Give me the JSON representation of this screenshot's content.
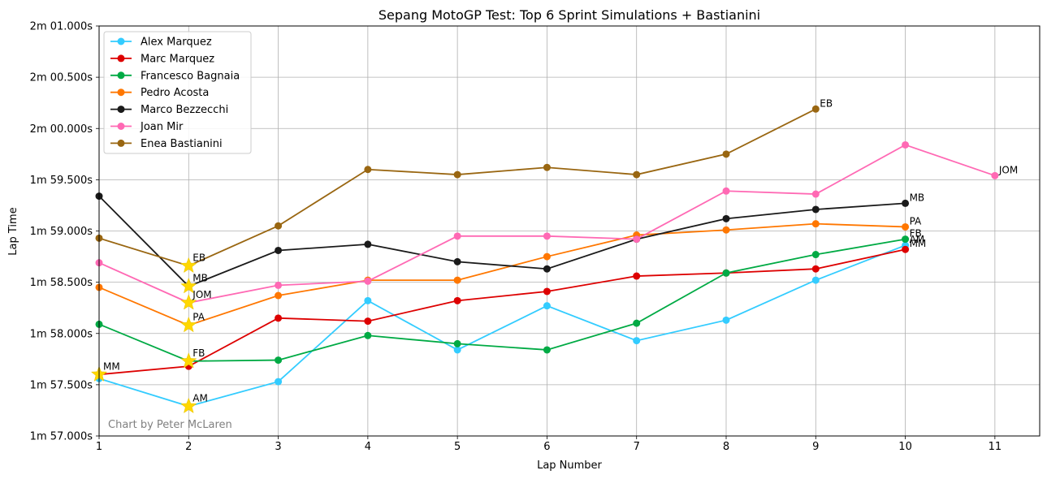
{
  "chart_data": {
    "type": "line",
    "title": "Sepang MotoGP Test: Top 6 Sprint Simulations + Bastianini",
    "xlabel": "Lap Number",
    "ylabel": "Lap Time",
    "credit": "Chart by Peter McLaren",
    "grid": true,
    "legend_position": "top-left",
    "xlim": [
      1,
      11.5
    ],
    "ylim": [
      57.0,
      61.0
    ],
    "x_ticks": [
      1,
      2,
      3,
      4,
      5,
      6,
      7,
      8,
      9,
      10,
      11
    ],
    "y_ticks": [
      {
        "value": 57.0,
        "label": "1m 57.000s"
      },
      {
        "value": 57.5,
        "label": "1m 57.500s"
      },
      {
        "value": 58.0,
        "label": "1m 58.000s"
      },
      {
        "value": 58.5,
        "label": "1m 58.500s"
      },
      {
        "value": 59.0,
        "label": "1m 59.000s"
      },
      {
        "value": 59.5,
        "label": "1m 59.500s"
      },
      {
        "value": 60.0,
        "label": "2m 00.000s"
      },
      {
        "value": 60.5,
        "label": "2m 00.500s"
      },
      {
        "value": 61.0,
        "label": "2m 01.000s"
      }
    ],
    "series": [
      {
        "name": "Alex Marquez",
        "color": "#33ccff",
        "x": [
          1,
          2,
          3,
          4,
          5,
          6,
          7,
          8,
          9,
          10
        ],
        "y": [
          57.56,
          57.29,
          57.53,
          58.32,
          57.84,
          58.27,
          57.93,
          58.13,
          58.52,
          58.86
        ],
        "best_lap": 2,
        "initials": "AM"
      },
      {
        "name": "Marc Marquez",
        "color": "#dd0000",
        "x": [
          1,
          2,
          3,
          4,
          5,
          6,
          7,
          8,
          9,
          10
        ],
        "y": [
          57.6,
          57.68,
          58.15,
          58.12,
          58.32,
          58.41,
          58.56,
          58.59,
          58.63,
          58.82
        ],
        "best_lap": 1,
        "initials": "MM"
      },
      {
        "name": "Francesco Bagnaia",
        "color": "#00aa44",
        "x": [
          1,
          2,
          3,
          4,
          5,
          6,
          7,
          8,
          9,
          10
        ],
        "y": [
          58.09,
          57.73,
          57.74,
          57.98,
          57.9,
          57.84,
          58.1,
          58.59,
          58.77,
          58.92
        ],
        "best_lap": 2,
        "initials": "FB"
      },
      {
        "name": "Pedro Acosta",
        "color": "#ff7700",
        "x": [
          1,
          2,
          3,
          4,
          5,
          6,
          7,
          8,
          9,
          10
        ],
        "y": [
          58.45,
          58.08,
          58.37,
          58.52,
          58.52,
          58.75,
          58.96,
          59.01,
          59.07,
          59.04
        ],
        "best_lap": 2,
        "initials": "PA"
      },
      {
        "name": "Marco Bezzecchi",
        "color": "#1a1a1a",
        "x": [
          1,
          2,
          3,
          4,
          5,
          6,
          7,
          8,
          9,
          10
        ],
        "y": [
          59.34,
          58.46,
          58.81,
          58.87,
          58.7,
          58.63,
          58.92,
          59.12,
          59.21,
          59.27
        ],
        "best_lap": 2,
        "initials": "MB"
      },
      {
        "name": "Joan Mir",
        "color": "#ff69b4",
        "x": [
          1,
          2,
          3,
          4,
          5,
          6,
          7,
          8,
          9,
          10,
          11
        ],
        "y": [
          58.69,
          58.3,
          58.47,
          58.51,
          58.95,
          58.95,
          58.92,
          59.39,
          59.36,
          59.84,
          59.54
        ],
        "best_lap": 2,
        "initials": "JOM"
      },
      {
        "name": "Enea Bastianini",
        "color": "#996611",
        "x": [
          1,
          2,
          3,
          4,
          5,
          6,
          7,
          8,
          9
        ],
        "y": [
          58.93,
          58.66,
          59.05,
          59.6,
          59.55,
          59.62,
          59.55,
          59.75,
          60.19
        ],
        "best_lap": 2,
        "initials": "EB"
      }
    ]
  }
}
